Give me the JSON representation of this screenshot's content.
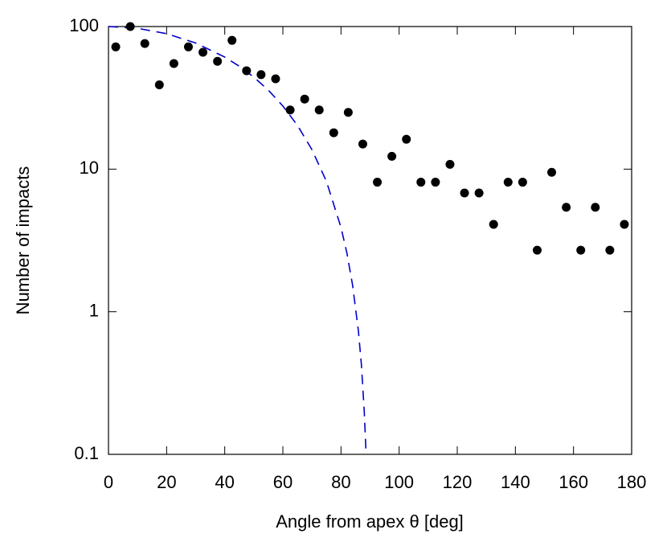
{
  "chart_data": {
    "type": "scatter",
    "xlabel": "Angle from apex θ [deg]",
    "ylabel": "Number of impacts",
    "xlim": [
      0,
      180
    ],
    "xticks": [
      0,
      20,
      40,
      60,
      80,
      100,
      120,
      140,
      160,
      180
    ],
    "ylim": [
      0.1,
      100
    ],
    "yticks": [
      0.1,
      1,
      10,
      100
    ],
    "ylog": true,
    "series": [
      {
        "type": "scatter",
        "color": "#000000",
        "x": [
          2.5,
          7.5,
          12.5,
          17.5,
          22.5,
          27.5,
          32.5,
          37.5,
          42.5,
          47.5,
          52.5,
          57.5,
          62.5,
          67.5,
          72.5,
          77.5,
          82.5,
          87.5,
          92.5,
          97.5,
          102.5,
          107.5,
          112.5,
          117.5,
          122.5,
          127.5,
          132.5,
          137.5,
          142.5,
          147.5,
          152.5,
          157.5,
          162.5,
          167.5,
          172.5,
          177.5
        ],
        "values": [
          72,
          100,
          76,
          39,
          55,
          72,
          66,
          57,
          80,
          49,
          46,
          43,
          26,
          31,
          26,
          18,
          25,
          15,
          8.1,
          12.3,
          16.2,
          8.1,
          8.1,
          10.8,
          6.8,
          6.8,
          4.1,
          8.1,
          8.1,
          2.7,
          9.5,
          5.4,
          2.7,
          5.4,
          2.7,
          4.1
        ]
      },
      {
        "type": "line",
        "color": "#0000cc",
        "x": [
          0,
          10,
          20,
          30,
          40,
          45,
          50,
          55,
          60,
          65,
          70,
          75,
          80,
          82,
          84,
          86,
          87,
          88,
          88.6
        ],
        "values": [
          100,
          97.2,
          89.1,
          76.6,
          61.1,
          52.7,
          44.2,
          35.8,
          27.7,
          20.3,
          13.7,
          8.2,
          3.9,
          2.6,
          1.53,
          0.73,
          0.43,
          0.2,
          0.104
        ]
      }
    ]
  }
}
